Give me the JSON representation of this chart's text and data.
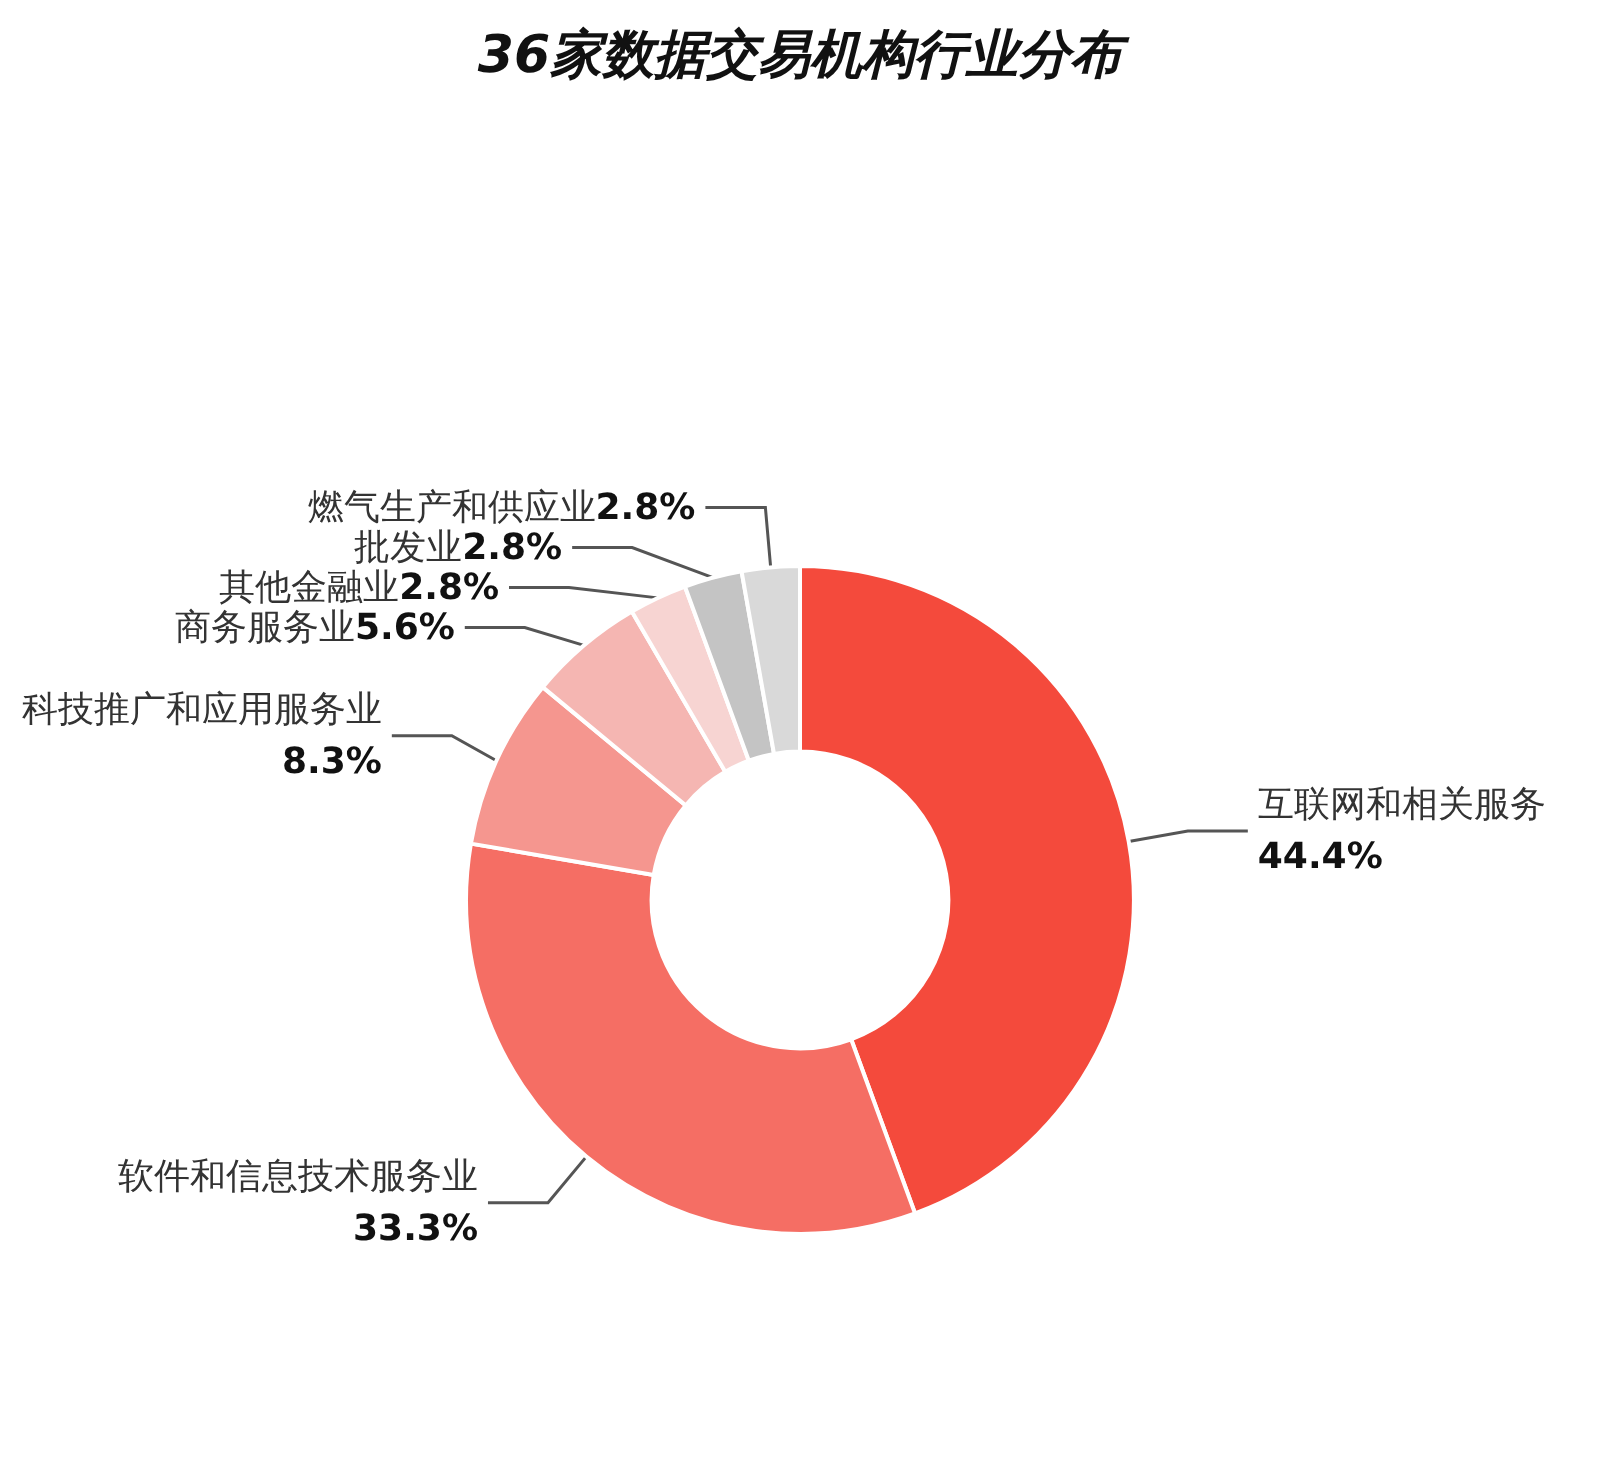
{
  "chart_data": {
    "type": "donut",
    "title": "36家数据交易机构行业分布",
    "categories": [
      "互联网和相关服务",
      "软件和信息技术服务业",
      "科技推广和应用服务业",
      "商务服务业",
      "其他金融业",
      "批发业",
      "燃气生产和供应业"
    ],
    "values": [
      44.4,
      33.3,
      8.3,
      5.6,
      2.8,
      2.8,
      2.8
    ],
    "colors": [
      "#f44a3c",
      "#f56e64",
      "#f5968f",
      "#f5b6b2",
      "#f7d4d2",
      "#c4c4c4",
      "#d9d9d9"
    ],
    "value_labels": [
      "44.4%",
      "33.3%",
      "8.3%",
      "5.6%",
      "2.8%",
      "2.8%",
      "2.8%"
    ],
    "legend": false
  }
}
